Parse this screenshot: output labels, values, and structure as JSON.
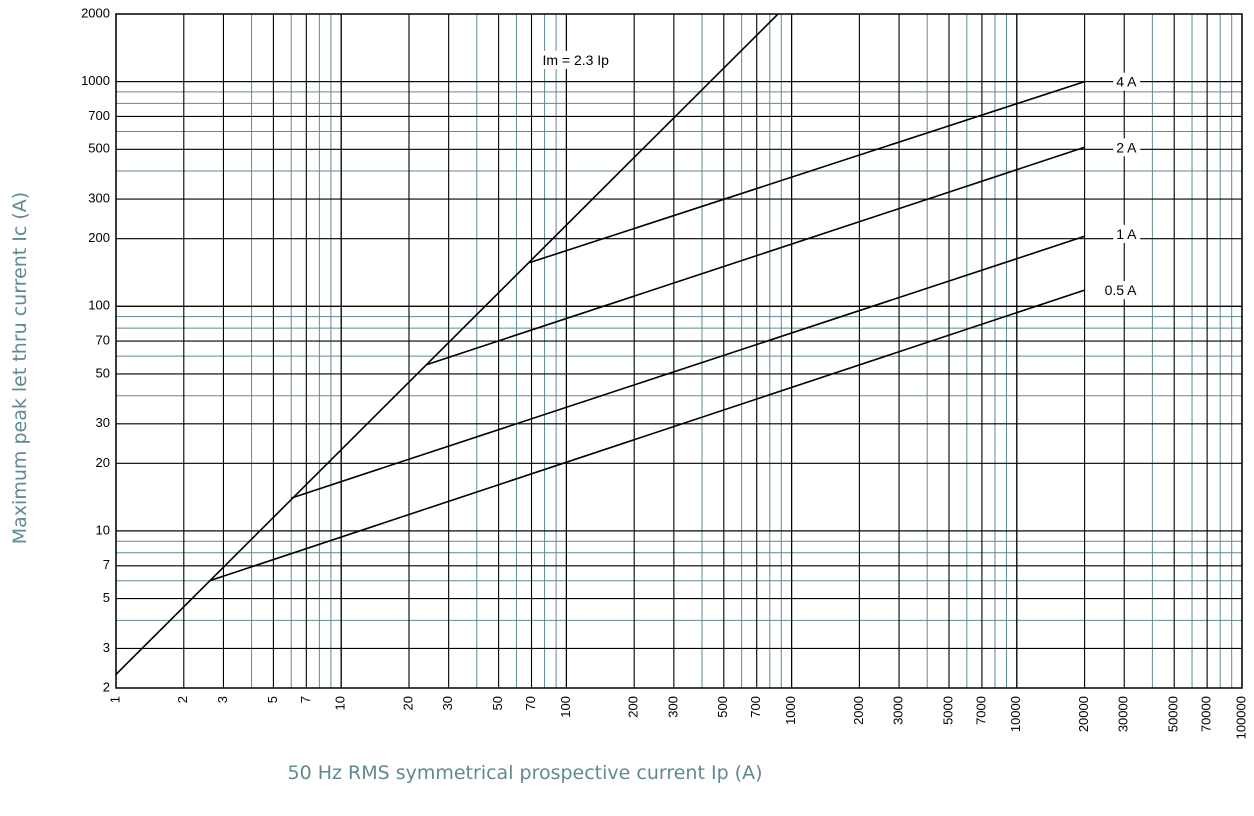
{
  "chart_data": {
    "type": "line",
    "xscale": "log",
    "yscale": "log",
    "xlim": [
      1,
      100000
    ],
    "ylim": [
      2,
      2000
    ],
    "xlabel": "50 Hz RMS symmetrical prospective current Ip (A)",
    "ylabel": "Maximum peak let thru current Ic (A)",
    "grid": true,
    "colors": {
      "line": "#000000",
      "grid_dark": "#000000",
      "grid_light": "#5f8a8f",
      "axis_title": "#5f8a8f"
    },
    "xticks": [
      {
        "value": 1,
        "label": "1"
      },
      {
        "value": 2,
        "label": "2"
      },
      {
        "value": 3,
        "label": "3"
      },
      {
        "value": 5,
        "label": "5"
      },
      {
        "value": 7,
        "label": "7"
      },
      {
        "value": 10,
        "label": "10"
      },
      {
        "value": 20,
        "label": "20"
      },
      {
        "value": 30,
        "label": "30"
      },
      {
        "value": 50,
        "label": "50"
      },
      {
        "value": 70,
        "label": "70"
      },
      {
        "value": 100,
        "label": "100"
      },
      {
        "value": 200,
        "label": "200"
      },
      {
        "value": 300,
        "label": "300"
      },
      {
        "value": 500,
        "label": "500"
      },
      {
        "value": 700,
        "label": "700"
      },
      {
        "value": 1000,
        "label": "1000"
      },
      {
        "value": 2000,
        "label": "2000"
      },
      {
        "value": 3000,
        "label": "3000"
      },
      {
        "value": 5000,
        "label": "5000"
      },
      {
        "value": 7000,
        "label": "7000"
      },
      {
        "value": 10000,
        "label": "10000"
      },
      {
        "value": 20000,
        "label": "20000"
      },
      {
        "value": 30000,
        "label": "30000"
      },
      {
        "value": 50000,
        "label": "50000"
      },
      {
        "value": 70000,
        "label": "70000"
      },
      {
        "value": 100000,
        "label": "100000"
      }
    ],
    "yticks": [
      {
        "value": 2,
        "label": "2"
      },
      {
        "value": 3,
        "label": "3"
      },
      {
        "value": 5,
        "label": "5"
      },
      {
        "value": 7,
        "label": "7"
      },
      {
        "value": 10,
        "label": "10"
      },
      {
        "value": 20,
        "label": "20"
      },
      {
        "value": 30,
        "label": "30"
      },
      {
        "value": 50,
        "label": "50"
      },
      {
        "value": 70,
        "label": "70"
      },
      {
        "value": 100,
        "label": "100"
      },
      {
        "value": 200,
        "label": "200"
      },
      {
        "value": 300,
        "label": "300"
      },
      {
        "value": 500,
        "label": "500"
      },
      {
        "value": 700,
        "label": "700"
      },
      {
        "value": 1000,
        "label": "1000"
      },
      {
        "value": 2000,
        "label": "2000"
      }
    ],
    "series": [
      {
        "name": "Im = 2.3 Ip",
        "points": [
          [
            1,
            2.3
          ],
          [
            870,
            2000
          ]
        ]
      },
      {
        "name": "4 A",
        "points": [
          [
            68,
            156
          ],
          [
            20000,
            1000
          ]
        ]
      },
      {
        "name": "2 A",
        "points": [
          [
            24,
            55
          ],
          [
            20000,
            510
          ]
        ]
      },
      {
        "name": "1 A",
        "points": [
          [
            6,
            14
          ],
          [
            20000,
            205
          ]
        ]
      },
      {
        "name": "0.5 A",
        "points": [
          [
            2.6,
            6
          ],
          [
            20000,
            118
          ]
        ]
      }
    ],
    "series_labels": [
      {
        "text": "Im = 2.3 Ip",
        "at": [
          110,
          1250
        ]
      },
      {
        "text": "4 A",
        "at": [
          34000,
          1000
        ]
      },
      {
        "text": "2 A",
        "at": [
          34000,
          510
        ]
      },
      {
        "text": "1 A",
        "at": [
          34000,
          210
        ]
      },
      {
        "text": "0.5 A",
        "at": [
          34000,
          118
        ]
      }
    ]
  }
}
